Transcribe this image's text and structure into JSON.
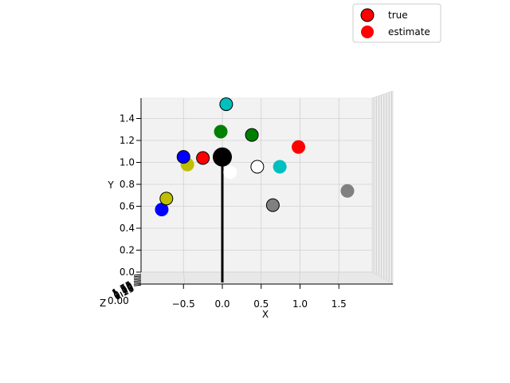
{
  "chart_data": {
    "type": "scatter",
    "projection": "3d",
    "xlabel": "X",
    "ylabel": "Y",
    "zlabel": "Z",
    "x_ticks": [
      "−0.5",
      "0.0",
      "0.5",
      "1.0",
      "1.5"
    ],
    "y_ticks": [
      "0.0",
      "0.2",
      "0.4",
      "0.6",
      "0.8",
      "1.0",
      "1.2",
      "1.4"
    ],
    "z_ticks_overlapping": [
      "0.00",
      "0.25",
      "0.50",
      "0.75",
      "1.00",
      "1.25",
      "1.50",
      "1.75"
    ],
    "z_tick_visible_text": "0.00",
    "legend": {
      "location": "top-right",
      "entries": [
        {
          "label": "true",
          "color": "#ff0000",
          "edge": "#000000"
        },
        {
          "label": "estimate",
          "color": "#ff0000",
          "edge": "none"
        }
      ]
    },
    "origin_marker": {
      "x": 0.0,
      "y": 1.02,
      "color": "#000000"
    },
    "vertical_line": {
      "x": 0.0,
      "y_from": 0.0,
      "y_to": 1.02,
      "color": "#000000"
    },
    "true_points": [
      {
        "x": 0.05,
        "y": 1.53,
        "color": "#00bfbf"
      },
      {
        "x": 0.38,
        "y": 1.25,
        "color": "#008000"
      },
      {
        "x": -0.5,
        "y": 1.05,
        "color": "#0000ff"
      },
      {
        "x": -0.25,
        "y": 1.04,
        "color": "#ff0000"
      },
      {
        "x": 0.45,
        "y": 0.96,
        "color": "#ffffff"
      },
      {
        "x": -0.72,
        "y": 0.67,
        "color": "#bfbf00"
      },
      {
        "x": 0.65,
        "y": 0.61,
        "color": "#808080"
      }
    ],
    "estimate_points": [
      {
        "x": -0.02,
        "y": 1.28,
        "color": "#008000"
      },
      {
        "x": 0.98,
        "y": 1.14,
        "color": "#ff0000"
      },
      {
        "x": -0.45,
        "y": 0.98,
        "color": "#bfbf00"
      },
      {
        "x": 0.1,
        "y": 0.91,
        "color": "#ffffff"
      },
      {
        "x": 0.74,
        "y": 0.96,
        "color": "#00bfbf"
      },
      {
        "x": -0.78,
        "y": 0.57,
        "color": "#0000ff"
      },
      {
        "x": 1.61,
        "y": 0.74,
        "color": "#808080"
      }
    ],
    "xlim": [
      -0.95,
      1.95
    ],
    "ylim": [
      0.0,
      1.58
    ],
    "grid": true
  }
}
